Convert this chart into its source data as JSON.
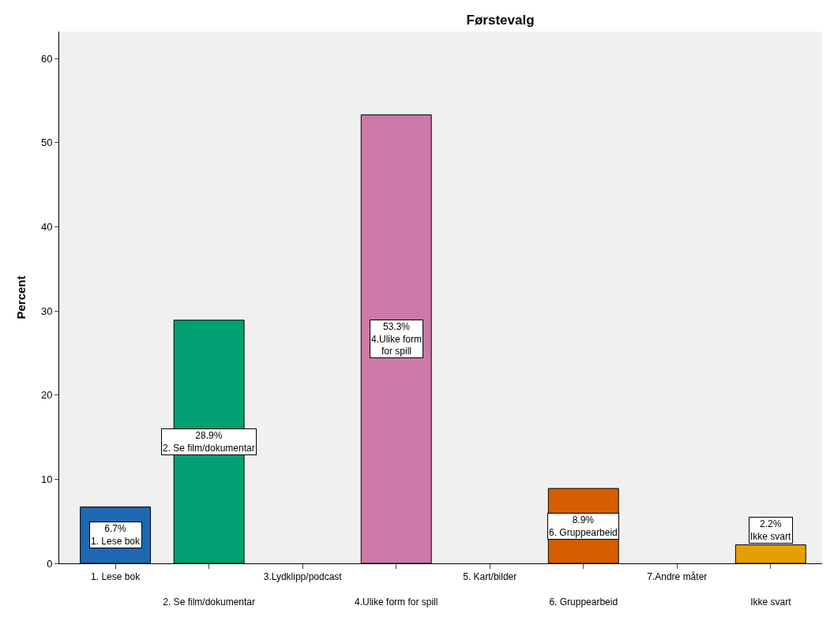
{
  "chart_data": {
    "type": "bar",
    "title": "Førstevalg",
    "ylabel": "Percent",
    "categories": [
      "1. Lese bok",
      "2. Se film/dokumentar",
      "3.Lydklipp/podcast",
      "4.Ulike form for spill",
      "5. Kart/bilder",
      "6. Gruppearbeid",
      "7.Andre måter",
      "Ikke svart"
    ],
    "values": [
      6.7,
      28.9,
      0,
      53.3,
      0,
      8.9,
      0,
      2.2
    ],
    "colors": [
      "#1f67b1",
      "#00a072",
      "#cccccc",
      "#cd79a7",
      "#cccccc",
      "#d55e00",
      "#cccccc",
      "#e69f00"
    ],
    "value_labels": [
      "6.7%\n1. Lese bok",
      "28.9%\n2. Se film/dokumentar",
      null,
      "53.3%\n4.Ulike form\nfor spill",
      null,
      "8.9%\n6. Gruppearbeid",
      null,
      "2.2%\nIkke svart"
    ],
    "ylim": [
      0,
      63.2
    ],
    "yticks": [
      0,
      10,
      20,
      30,
      40,
      50,
      60
    ]
  }
}
